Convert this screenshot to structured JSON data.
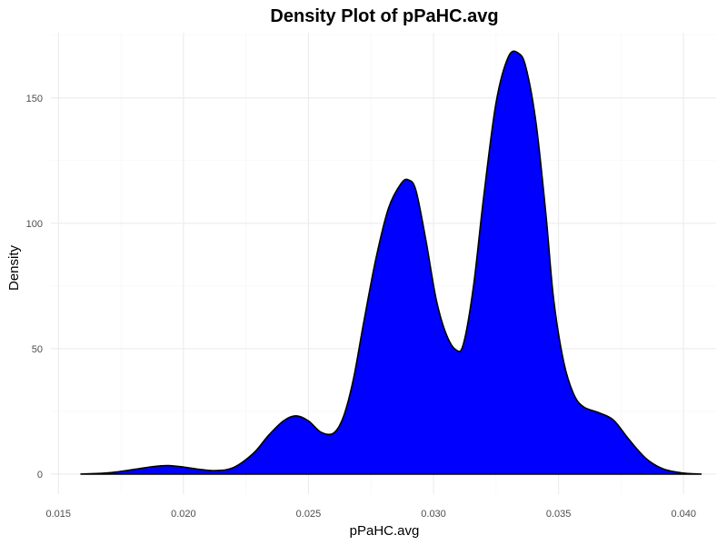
{
  "chart_data": {
    "type": "area",
    "title": "Density Plot of pPaHC.avg",
    "xlabel": "pPaHC.avg",
    "ylabel": "Density",
    "xlim": [
      0.0147,
      0.0413
    ],
    "ylim": [
      -8,
      176
    ],
    "x_ticks": [
      0.015,
      0.02,
      0.025,
      0.03,
      0.035,
      0.04
    ],
    "x_tick_labels": [
      "0.015",
      "0.020",
      "0.025",
      "0.030",
      "0.035",
      "0.040"
    ],
    "y_ticks": [
      0,
      50,
      100,
      150
    ],
    "y_tick_labels": [
      "0",
      "50",
      "100",
      "150"
    ],
    "grid": true,
    "fill_color": "#0000ff",
    "line_color": "#000000",
    "series": [
      {
        "x": [
          0.0159,
          0.017,
          0.018,
          0.0188,
          0.0194,
          0.02,
          0.0207,
          0.0213,
          0.022,
          0.0228,
          0.0234,
          0.024,
          0.0245,
          0.025,
          0.0255,
          0.026,
          0.0264,
          0.0268,
          0.0272,
          0.0277,
          0.0282,
          0.0287,
          0.029,
          0.0293,
          0.0297,
          0.0301,
          0.0305,
          0.0309,
          0.0312,
          0.0316,
          0.032,
          0.0325,
          0.033,
          0.0334,
          0.0337,
          0.0341,
          0.0345,
          0.0348,
          0.0352,
          0.0356,
          0.036,
          0.0366,
          0.0372,
          0.0378,
          0.0385,
          0.0392,
          0.04,
          0.0407
        ],
        "y": [
          0,
          0.5,
          1.8,
          3.0,
          3.4,
          2.8,
          1.8,
          1.4,
          2.6,
          8.3,
          15.4,
          21.2,
          23.2,
          21.2,
          16.7,
          16.3,
          22.9,
          38,
          60,
          86,
          106,
          115.8,
          117.3,
          113,
          93,
          70,
          56,
          49.5,
          52,
          75,
          110,
          148,
          166.5,
          167.8,
          162,
          140,
          103,
          70,
          45,
          32,
          26.8,
          24.5,
          21.5,
          14,
          6.2,
          2.0,
          0.4,
          0
        ]
      }
    ]
  }
}
